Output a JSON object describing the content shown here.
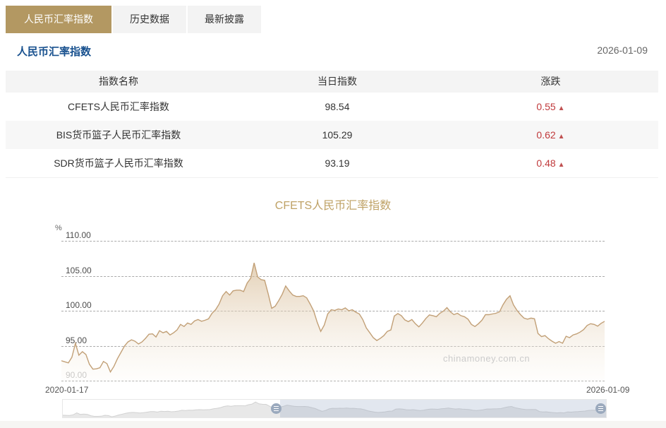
{
  "tabs": [
    {
      "label": "人民币汇率指数",
      "active": true
    },
    {
      "label": "历史数据",
      "active": false
    },
    {
      "label": "最新披露",
      "active": false
    }
  ],
  "header": {
    "title": "人民币汇率指数",
    "date": "2026-01-09"
  },
  "ui": {
    "up_arrow": "▲"
  },
  "table": {
    "columns": [
      "指数名称",
      "当日指数",
      "涨跌"
    ],
    "rows": [
      {
        "name": "CFETS人民币汇率指数",
        "value": "98.54",
        "change": "0.55",
        "direction": "up"
      },
      {
        "name": "BIS货币篮子人民币汇率指数",
        "value": "105.29",
        "change": "0.62",
        "direction": "up"
      },
      {
        "name": "SDR货币篮子人民币汇率指数",
        "value": "93.19",
        "change": "0.48",
        "direction": "up"
      }
    ]
  },
  "chart": {
    "title": "CFETS人民币汇率指数",
    "unit_label": "%",
    "y_ticks": [
      "110.00",
      "105.00",
      "100.00",
      "95.00",
      "90.00"
    ],
    "x_start_label": "2020-01-17",
    "x_end_label": "2026-01-09",
    "watermark": "chinamoney.com.cn",
    "colors": {
      "accent_gold": "#b39862",
      "title_blue": "#17508e",
      "up_red": "#c0393b",
      "line": "#c2a077",
      "area_top": "rgba(209,177,133,0.6)",
      "area_bottom": "rgba(252,249,244,0.25)",
      "slider_selected": "rgba(151,170,196,0.28)",
      "slider_handle": "#9aa9bd",
      "mini_fill": "#e8e8e8",
      "mini_line": "#d2d2d2"
    }
  },
  "chart_data": {
    "type": "area",
    "title": "CFETS人民币汇率指数",
    "ylabel": "%",
    "ylim": [
      90,
      110
    ],
    "y_gridlines": [
      110,
      105,
      100,
      95,
      90
    ],
    "grid": "dashed-horizontal",
    "legend": "none",
    "x_range": [
      "2020-01-17",
      "2026-01-09"
    ],
    "zoom_window_pct": [
      40,
      100
    ],
    "series": [
      {
        "name": "CFETS人民币汇率指数",
        "values": [
          92.9,
          92.75,
          92.6,
          93.4,
          95.4,
          93.7,
          94.2,
          93.8,
          92.4,
          91.7,
          91.75,
          91.9,
          92.8,
          92.5,
          91.3,
          92.1,
          93.2,
          94.1,
          95.0,
          95.6,
          95.9,
          95.7,
          95.3,
          95.6,
          96.1,
          96.7,
          96.75,
          96.3,
          97.2,
          96.9,
          97.1,
          96.6,
          96.9,
          97.3,
          98.1,
          97.8,
          98.3,
          98.1,
          98.6,
          98.8,
          98.55,
          98.7,
          98.9,
          99.7,
          100.2,
          101.0,
          102.2,
          102.8,
          102.3,
          102.9,
          103.0,
          103.0,
          102.8,
          104.0,
          104.7,
          106.9,
          104.9,
          104.5,
          104.4,
          102.5,
          100.4,
          100.7,
          101.5,
          102.4,
          103.6,
          102.9,
          102.3,
          102.1,
          102.1,
          102.2,
          101.9,
          101.0,
          100.0,
          98.4,
          97.1,
          98.0,
          99.6,
          100.2,
          100.1,
          100.3,
          100.2,
          100.45,
          100.05,
          100.2,
          99.85,
          99.6,
          98.8,
          97.6,
          96.9,
          96.2,
          95.8,
          96.1,
          96.5,
          97.1,
          97.3,
          99.3,
          99.65,
          99.35,
          98.75,
          98.5,
          98.8,
          98.2,
          97.75,
          98.3,
          98.95,
          99.45,
          99.35,
          99.2,
          99.7,
          100.0,
          100.5,
          99.9,
          99.5,
          99.7,
          99.35,
          99.2,
          98.85,
          98.1,
          97.8,
          98.2,
          98.7,
          99.5,
          99.5,
          99.6,
          99.7,
          99.9,
          100.9,
          101.7,
          102.2,
          100.9,
          100.1,
          99.5,
          99.0,
          98.85,
          99.0,
          98.9,
          96.8,
          96.35,
          96.5,
          96.05,
          95.7,
          95.4,
          95.65,
          95.4,
          96.4,
          96.2,
          96.6,
          96.75,
          97.0,
          97.35,
          97.95,
          98.2,
          98.1,
          97.85,
          98.25,
          98.54
        ]
      }
    ]
  }
}
